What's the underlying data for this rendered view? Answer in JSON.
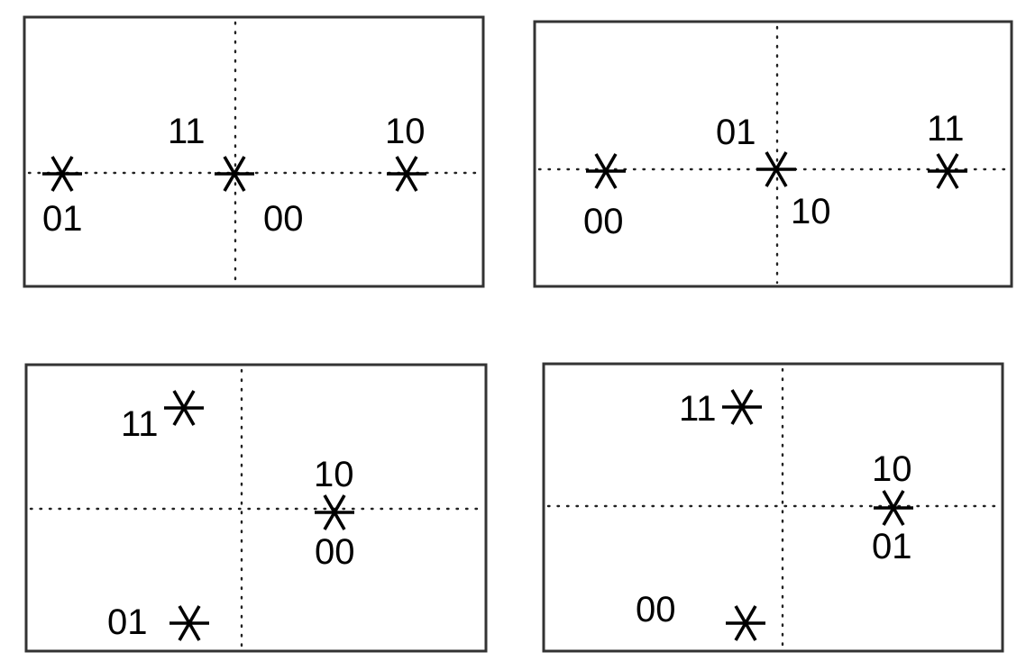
{
  "panels": [
    {
      "points": [
        {
          "symbol": "01"
        },
        {
          "symbol": "11"
        },
        {
          "symbol": "00"
        },
        {
          "symbol": "10"
        }
      ]
    },
    {
      "points": [
        {
          "symbol": "00"
        },
        {
          "symbol": "01"
        },
        {
          "symbol": "10"
        },
        {
          "symbol": "11"
        }
      ]
    },
    {
      "points": [
        {
          "symbol": "11"
        },
        {
          "symbol": "10"
        },
        {
          "symbol": "00"
        },
        {
          "symbol": "01"
        }
      ]
    },
    {
      "points": [
        {
          "symbol": "11"
        },
        {
          "symbol": "10"
        },
        {
          "symbol": "01"
        },
        {
          "symbol": "00"
        }
      ]
    }
  ]
}
